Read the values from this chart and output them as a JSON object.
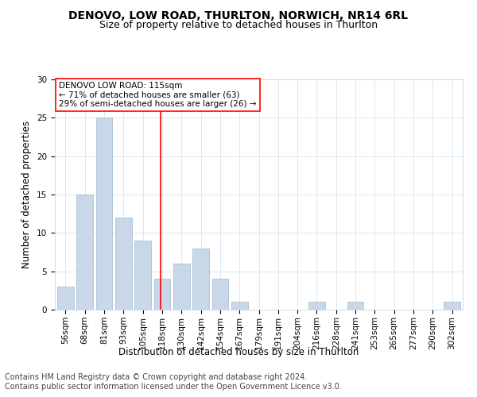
{
  "title1": "DENOVO, LOW ROAD, THURLTON, NORWICH, NR14 6RL",
  "title2": "Size of property relative to detached houses in Thurlton",
  "xlabel": "Distribution of detached houses by size in Thurlton",
  "ylabel": "Number of detached properties",
  "categories": [
    "56sqm",
    "68sqm",
    "81sqm",
    "93sqm",
    "105sqm",
    "118sqm",
    "130sqm",
    "142sqm",
    "154sqm",
    "167sqm",
    "179sqm",
    "191sqm",
    "204sqm",
    "216sqm",
    "228sqm",
    "241sqm",
    "253sqm",
    "265sqm",
    "277sqm",
    "290sqm",
    "302sqm"
  ],
  "values": [
    3,
    15,
    25,
    12,
    9,
    4,
    6,
    8,
    4,
    1,
    0,
    0,
    0,
    1,
    0,
    1,
    0,
    0,
    0,
    0,
    1
  ],
  "bar_color": "#c8d8e8",
  "bar_edge_color": "#a0b8cc",
  "vline_x_index": 5,
  "vline_color": "red",
  "annotation_text": "DENOVO LOW ROAD: 115sqm\n← 71% of detached houses are smaller (63)\n29% of semi-detached houses are larger (26) →",
  "annotation_box_color": "white",
  "annotation_box_edge_color": "red",
  "footnote1": "Contains HM Land Registry data © Crown copyright and database right 2024.",
  "footnote2": "Contains public sector information licensed under the Open Government Licence v3.0.",
  "ylim": [
    0,
    30
  ],
  "yticks": [
    0,
    5,
    10,
    15,
    20,
    25,
    30
  ],
  "grid_color": "#dce8f0",
  "title1_fontsize": 10,
  "title2_fontsize": 9,
  "xlabel_fontsize": 8.5,
  "ylabel_fontsize": 8.5,
  "tick_fontsize": 7.5,
  "annotation_fontsize": 7.5,
  "footnote_fontsize": 7.0
}
